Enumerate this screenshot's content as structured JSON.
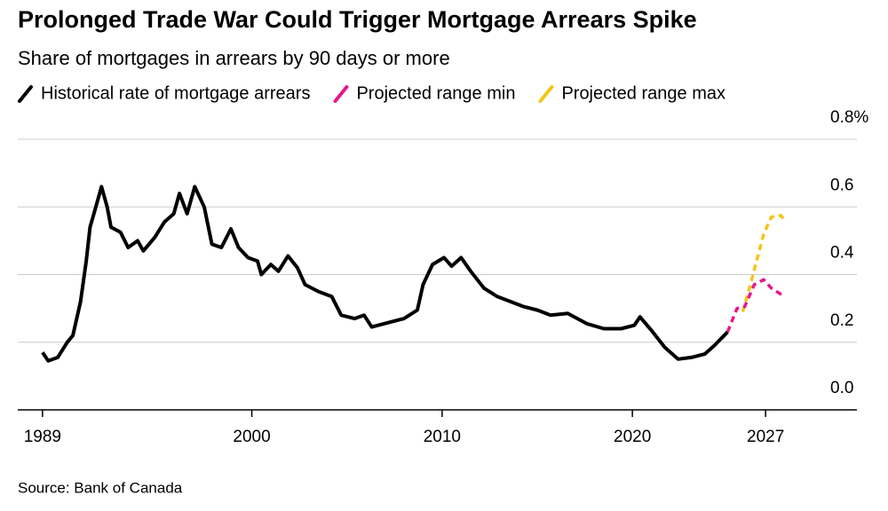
{
  "chart_data": {
    "type": "line",
    "title": "Prolonged Trade War Could Trigger Mortgage Arrears Spike",
    "subtitle": "Share of mortgages in arrears by 90 days or more",
    "source": "Source: Bank of Canada",
    "xlim": [
      1987.7,
      2031.8
    ],
    "xticks": [
      1989,
      2000,
      2010,
      2020,
      2027
    ],
    "ylim": [
      0,
      0.8
    ],
    "yticks": [
      {
        "value": 0,
        "label": "0.0"
      },
      0.2,
      0.4,
      0.6,
      {
        "value": 0.8,
        "label": "0.8%"
      }
    ],
    "grid": true,
    "series": [
      {
        "name": "Historical rate of mortgage arrears",
        "color": "#000000",
        "dashed": false,
        "x": [
          1989.0,
          1989.3,
          1989.8,
          1990.3,
          1990.6,
          1991.0,
          1991.3,
          1991.5,
          1991.8,
          1992.1,
          1992.4,
          1992.6,
          1993.1,
          1993.5,
          1994.0,
          1994.3,
          1994.9,
          1995.4,
          1995.9,
          1996.2,
          1996.6,
          1997.0,
          1997.5,
          1997.9,
          1998.4,
          1998.9,
          1999.3,
          1999.8,
          2000.3,
          2000.5,
          2001.0,
          2001.4,
          2001.9,
          2002.4,
          2002.8,
          2003.5,
          2004.2,
          2004.7,
          2005.4,
          2005.9,
          2006.3,
          2007.3,
          2008.0,
          2008.7,
          2009.0,
          2009.5,
          2010.1,
          2010.5,
          2011.0,
          2011.5,
          2012.2,
          2012.9,
          2013.6,
          2014.3,
          2015.0,
          2015.7,
          2016.6,
          2017.6,
          2018.5,
          2019.4,
          2020.1,
          2020.4,
          2021.0,
          2021.7,
          2022.4,
          2023.1,
          2023.8,
          2024.3,
          2025.0
        ],
        "values": [
          0.17,
          0.145,
          0.155,
          0.2,
          0.22,
          0.32,
          0.44,
          0.54,
          0.6,
          0.66,
          0.6,
          0.54,
          0.525,
          0.48,
          0.5,
          0.47,
          0.51,
          0.555,
          0.58,
          0.64,
          0.58,
          0.66,
          0.6,
          0.49,
          0.48,
          0.535,
          0.48,
          0.45,
          0.44,
          0.4,
          0.43,
          0.41,
          0.455,
          0.42,
          0.37,
          0.35,
          0.335,
          0.28,
          0.27,
          0.28,
          0.245,
          0.26,
          0.27,
          0.295,
          0.37,
          0.43,
          0.45,
          0.425,
          0.45,
          0.41,
          0.36,
          0.335,
          0.32,
          0.305,
          0.295,
          0.28,
          0.285,
          0.255,
          0.24,
          0.24,
          0.25,
          0.275,
          0.235,
          0.185,
          0.15,
          0.155,
          0.165,
          0.19,
          0.23
        ]
      },
      {
        "name": "Projected range min",
        "color": "#e6198c",
        "dashed": true,
        "x": [
          2025.0,
          2025.5,
          2025.9,
          2026.4,
          2026.9,
          2027.3,
          2028.0
        ],
        "values": [
          0.23,
          0.3,
          0.305,
          0.37,
          0.385,
          0.36,
          0.335
        ]
      },
      {
        "name": "Projected range max",
        "color": "#f5c518",
        "dashed": true,
        "x": [
          2025.8,
          2026.2,
          2026.9,
          2027.3,
          2027.8,
          2028.0
        ],
        "values": [
          0.29,
          0.37,
          0.52,
          0.57,
          0.575,
          0.56
        ]
      }
    ]
  }
}
